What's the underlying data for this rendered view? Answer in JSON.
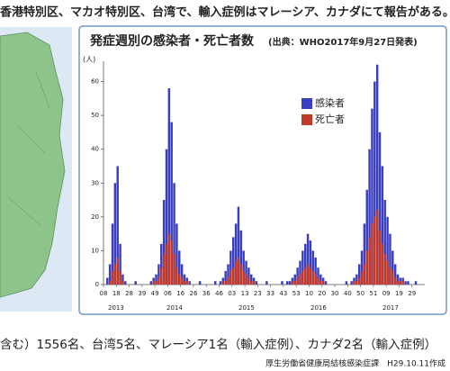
{
  "header": {
    "text": "香港特別区、マカオ特別区、台湾で、輸入症例はマレーシア、カナダにて報告がある。"
  },
  "chart_data": {
    "type": "bar",
    "title": "発症週別の感染者・死亡者数",
    "subtitle": "(出典：WHO2017年9月27日発表)",
    "y_label": "(人)",
    "categories": [
      "08",
      null,
      null,
      null,
      null,
      "18",
      null,
      null,
      null,
      null,
      "28",
      null,
      null,
      null,
      null,
      "39",
      null,
      null,
      null,
      null,
      "49",
      null,
      null,
      null,
      null,
      "06",
      null,
      null,
      null,
      null,
      "16",
      null,
      null,
      null,
      null,
      "26",
      null,
      null,
      null,
      null,
      "36",
      null,
      null,
      null,
      null,
      "46",
      null,
      null,
      null,
      null,
      "03",
      null,
      null,
      null,
      null,
      "13",
      null,
      null,
      null,
      null,
      "23",
      null,
      null,
      null,
      null,
      "33",
      null,
      null,
      null,
      null,
      "43",
      null,
      null,
      null,
      null,
      "53",
      null,
      null,
      null,
      null,
      "10",
      null,
      null,
      null,
      null,
      "20",
      null,
      null,
      null,
      null,
      "30",
      null,
      null,
      null,
      null,
      "40",
      null,
      null,
      null,
      null,
      "50",
      null,
      null,
      null,
      null,
      "51",
      null,
      null,
      null,
      null,
      "09",
      null,
      null,
      null,
      null,
      "19",
      null,
      null,
      null,
      null,
      "29",
      null,
      null,
      null,
      null
    ],
    "years": [
      "2013",
      "2014",
      "2015",
      "2016",
      "2017"
    ],
    "series": [
      {
        "name": "感染者",
        "color": "#3a3fc0",
        "values": [
          0,
          2,
          6,
          18,
          30,
          35,
          12,
          3,
          1,
          0,
          0,
          0,
          1,
          0,
          0,
          0,
          0,
          0,
          1,
          2,
          3,
          6,
          12,
          25,
          40,
          58,
          48,
          30,
          18,
          10,
          6,
          3,
          2,
          1,
          0,
          0,
          0,
          1,
          0,
          0,
          0,
          0,
          0,
          1,
          0,
          1,
          2,
          4,
          6,
          10,
          14,
          18,
          23,
          16,
          10,
          7,
          5,
          3,
          2,
          1,
          0,
          0,
          0,
          1,
          0,
          0,
          0,
          0,
          0,
          1,
          0,
          1,
          1,
          2,
          3,
          5,
          7,
          10,
          12,
          15,
          13,
          10,
          8,
          5,
          3,
          2,
          1,
          0,
          0,
          0,
          0,
          0,
          0,
          0,
          1,
          0,
          1,
          2,
          3,
          6,
          10,
          18,
          28,
          40,
          52,
          60,
          65,
          45,
          35,
          25,
          20,
          15,
          10,
          6,
          3,
          2,
          2,
          1,
          1,
          0,
          0,
          1,
          0,
          0,
          0
        ]
      },
      {
        "name": "死亡者",
        "color": "#c0392b",
        "values": [
          0,
          0,
          1,
          4,
          6,
          8,
          4,
          1,
          0,
          0,
          0,
          0,
          0,
          0,
          0,
          0,
          0,
          0,
          0,
          1,
          1,
          2,
          5,
          9,
          12,
          15,
          13,
          9,
          5,
          3,
          2,
          1,
          1,
          0,
          0,
          0,
          0,
          0,
          0,
          0,
          0,
          0,
          0,
          0,
          0,
          0,
          1,
          1,
          2,
          4,
          5,
          7,
          8,
          6,
          4,
          3,
          2,
          1,
          1,
          0,
          0,
          0,
          0,
          0,
          0,
          0,
          0,
          0,
          0,
          0,
          0,
          0,
          0,
          1,
          1,
          2,
          3,
          4,
          5,
          6,
          5,
          4,
          3,
          2,
          1,
          1,
          0,
          0,
          0,
          0,
          0,
          0,
          0,
          0,
          0,
          0,
          0,
          1,
          1,
          2,
          4,
          6,
          10,
          14,
          18,
          20,
          22,
          16,
          12,
          9,
          7,
          5,
          4,
          2,
          1,
          1,
          1,
          0,
          0,
          0,
          0,
          0,
          0,
          0,
          0
        ]
      }
    ],
    "ylim": [
      0,
      66
    ],
    "yticks": [
      0,
      10,
      20,
      30,
      40,
      50,
      60
    ],
    "legend": "upper right"
  },
  "footer": {
    "summary": "含む）1556名、台湾5名、マレーシア1名（輸入症例）、カナダ2名（輸入症例）",
    "credit": "厚生労働省健康局結核感染症課　H29.10.11作成"
  }
}
